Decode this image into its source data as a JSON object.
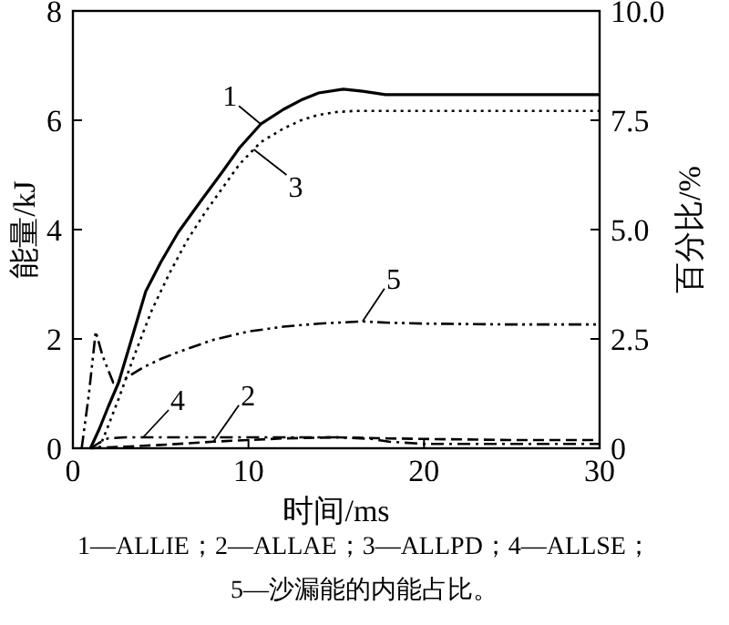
{
  "chart_data": {
    "type": "line",
    "xlabel": "时间/ms",
    "ylabel": "能量/kJ",
    "y2label": "百分比/%",
    "xlim": [
      0,
      30
    ],
    "xticks": [
      0,
      10,
      20,
      30
    ],
    "ylim": [
      0,
      8
    ],
    "yticks": [
      0,
      2,
      4,
      6,
      8
    ],
    "y2lim": [
      0,
      10
    ],
    "y2ticks": [
      0,
      2.5,
      {
        "value": 5,
        "label": "5.0"
      },
      7.5,
      {
        "value": 10,
        "label": "10.0"
      }
    ],
    "grid": false,
    "series": [
      {
        "name": "1",
        "color": "#000000",
        "line_style": "solid",
        "x": [
          1,
          1.5,
          2,
          2.6,
          3.3,
          4.15,
          5,
          6,
          7.3,
          8.5,
          9.5,
          10.7,
          12,
          13,
          14,
          15.4,
          16.5,
          17.8,
          20,
          25,
          30
        ],
        "values": [
          0,
          0.35,
          0.75,
          1.2,
          1.95,
          2.87,
          3.4,
          3.95,
          4.53,
          5.05,
          5.5,
          5.93,
          6.2,
          6.37,
          6.5,
          6.57,
          6.53,
          6.47,
          6.47,
          6.47,
          6.47
        ]
      },
      {
        "name": "2",
        "color": "#000000",
        "line_style": "dashed",
        "x": [
          1,
          3,
          5,
          8,
          10,
          12,
          15,
          18,
          20,
          25,
          30
        ],
        "values": [
          0,
          0.03,
          0.06,
          0.12,
          0.15,
          0.18,
          0.2,
          0.18,
          0.17,
          0.15,
          0.15
        ]
      },
      {
        "name": "3",
        "color": "#000000",
        "line_style": "dotted",
        "x": [
          1.5,
          2,
          2.6,
          3.5,
          4.5,
          5.5,
          6.5,
          7.5,
          8.5,
          9.5,
          10.7,
          12,
          13,
          14,
          15,
          16,
          20,
          25,
          30
        ],
        "values": [
          0,
          0.4,
          0.9,
          1.7,
          2.53,
          3.2,
          3.8,
          4.3,
          4.75,
          5.2,
          5.6,
          5.85,
          6.0,
          6.1,
          6.15,
          6.17,
          6.17,
          6.17,
          6.17
        ]
      },
      {
        "name": "4",
        "color": "#000000",
        "line_style": "dashdot",
        "x": [
          1,
          1.5,
          2,
          3,
          5,
          10,
          15,
          17,
          18,
          20,
          25,
          30
        ],
        "values": [
          0,
          0.1,
          0.18,
          0.2,
          0.2,
          0.2,
          0.2,
          0.17,
          0.12,
          0.08,
          0.08,
          0.08
        ]
      },
      {
        "name": "5",
        "color": "#000000",
        "line_style": "dashdotdot",
        "axis": "y2",
        "x": [
          0.5,
          0.9,
          1.3,
          1.7,
          2.3,
          3,
          4,
          5,
          6,
          8,
          10,
          12,
          14,
          16.5,
          18,
          20,
          25,
          30
        ],
        "values": [
          0,
          1.2,
          2.67,
          2.1,
          1.5,
          1.6,
          1.85,
          2.04,
          2.2,
          2.48,
          2.67,
          2.78,
          2.85,
          2.9,
          2.87,
          2.85,
          2.83,
          2.83
        ]
      }
    ],
    "annotations": [
      "1—ALLIE；2—ALLAE；3—ALLPD；4—ALLSE；",
      "5—沙漏能的内能占比。"
    ]
  }
}
